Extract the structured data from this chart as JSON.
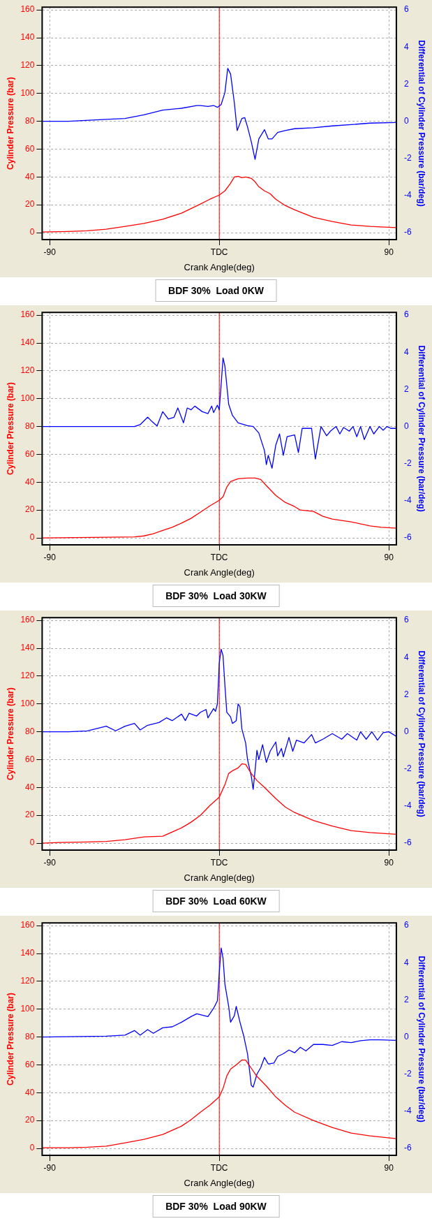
{
  "chart_data": [
    {
      "type": "line",
      "title": "BDF 30%  Load 0KW",
      "xlabel": "Crank Angle(deg)",
      "ylabel": "Cylinder Pressure (bar)",
      "y2label": "Differential of Cylinder Pressure (bar/deg)",
      "xlim": [
        -94,
        94
      ],
      "xticks": [
        {
          "value": -90,
          "label": "-90"
        },
        {
          "value": 0,
          "label": "TDC"
        },
        {
          "value": 90,
          "label": "90"
        }
      ],
      "ylim": [
        -5,
        162
      ],
      "yticks": [
        0,
        20,
        40,
        60,
        80,
        100,
        120,
        140,
        160
      ],
      "y2lim": [
        -6.375,
        6.15
      ],
      "y2ticks": [
        -6,
        -4,
        -2,
        0,
        2,
        4,
        6
      ],
      "grid": true,
      "legend": false,
      "marker": "none",
      "line_style": "solid",
      "ref_lines": [
        {
          "axis": "x",
          "value": 0,
          "color": "#ff0000"
        }
      ],
      "series": [
        {
          "color": "#ff0000",
          "x": [
            -94,
            -80,
            -70,
            -60,
            -50,
            -40,
            -30,
            -20,
            -10,
            -5,
            0,
            3,
            6,
            8,
            10,
            12,
            14,
            17,
            19,
            21,
            24,
            27,
            30,
            35,
            40,
            50,
            60,
            70,
            80,
            94
          ],
          "values": [
            0.5,
            0.8,
            1.3,
            2.5,
            4.5,
            6.6,
            9.6,
            14,
            20.5,
            24,
            27,
            30,
            35.5,
            40,
            40.5,
            39.5,
            40,
            39,
            36.5,
            33,
            30,
            28,
            24,
            19.5,
            16.4,
            11,
            8,
            5.5,
            4.5,
            3.6
          ]
        },
        {
          "color": "#0000ff",
          "axis": "y2",
          "x": [
            -94,
            -80,
            -60,
            -50,
            -40,
            -30,
            -20,
            -12,
            -10,
            -6,
            -3,
            -1,
            1,
            3,
            4.5,
            6,
            8,
            9.5,
            12,
            13.5,
            15,
            17,
            19,
            21,
            24,
            26,
            28,
            31,
            35,
            40,
            50,
            60,
            70,
            80,
            94
          ],
          "values": [
            0,
            0,
            0.1,
            0.15,
            0.35,
            0.6,
            0.7,
            0.85,
            0.85,
            0.8,
            0.85,
            0.75,
            0.9,
            1.55,
            2.85,
            2.55,
            1.0,
            -0.5,
            0.15,
            0.2,
            -0.3,
            -1.1,
            -2.05,
            -0.95,
            -0.45,
            -0.95,
            -0.95,
            -0.6,
            -0.5,
            -0.4,
            -0.35,
            -0.25,
            -0.18,
            -0.1,
            -0.07
          ]
        }
      ]
    },
    {
      "type": "line",
      "title": "BDF 30%  Load 30KW",
      "xlabel": "Crank Angle(deg)",
      "ylabel": "Cylinder Pressure (bar)",
      "y2label": "Differential of Cylinder Pressure (bar/deg)",
      "xlim": [
        -94,
        94
      ],
      "xticks": [
        {
          "value": -90,
          "label": "-90"
        },
        {
          "value": 0,
          "label": "TDC"
        },
        {
          "value": 90,
          "label": "90"
        }
      ],
      "ylim": [
        -5,
        162
      ],
      "yticks": [
        0,
        20,
        40,
        60,
        80,
        100,
        120,
        140,
        160
      ],
      "y2lim": [
        -6.375,
        6.15
      ],
      "y2ticks": [
        -6,
        -4,
        -2,
        0,
        2,
        4,
        6
      ],
      "grid": true,
      "legend": false,
      "marker": "none",
      "line_style": "solid",
      "ref_lines": [
        {
          "axis": "x",
          "value": 0,
          "color": "#ff0000"
        }
      ],
      "series": [
        {
          "color": "#ff0000",
          "x": [
            -94,
            -60,
            -45,
            -40,
            -35,
            -30,
            -25,
            -20,
            -15,
            -10,
            -5,
            0,
            2,
            4,
            6,
            10,
            15,
            19,
            22,
            25,
            30,
            35,
            40,
            43,
            50,
            55,
            60,
            70,
            80,
            86,
            94
          ],
          "values": [
            0,
            0.5,
            0.7,
            1.4,
            3,
            5.4,
            7.6,
            10.6,
            14,
            18.5,
            23,
            27,
            29.5,
            36.5,
            40.5,
            42.5,
            43,
            43,
            42,
            37.5,
            30.5,
            25.5,
            22.5,
            20,
            19,
            15.5,
            13.5,
            11.5,
            8.6,
            7.6,
            7
          ]
        },
        {
          "color": "#0000ff",
          "axis": "y2",
          "x": [
            -94,
            -45,
            -42,
            -38,
            -36,
            -33,
            -30,
            -27,
            -24,
            -22,
            -19,
            -17,
            -15,
            -13,
            -9,
            -6,
            -4,
            -3,
            -1,
            0,
            1,
            2,
            3,
            5,
            7,
            10,
            15,
            18,
            21,
            24,
            25,
            26,
            28,
            30,
            32,
            34,
            36,
            40,
            42,
            44,
            49,
            51,
            54,
            57,
            59,
            62,
            64,
            66,
            69,
            71,
            73,
            75,
            77,
            80,
            82,
            85,
            87,
            89,
            91,
            94
          ],
          "values": [
            0,
            0,
            0.1,
            0.5,
            0.3,
            0.03,
            0.8,
            0.4,
            0.5,
            1.0,
            0.2,
            1.0,
            0.9,
            1.1,
            0.8,
            0.7,
            1.1,
            0.75,
            1.15,
            0.9,
            2.25,
            3.7,
            3.25,
            1.2,
            0.6,
            0.2,
            0.05,
            0,
            -0.35,
            -1.3,
            -2.05,
            -1.55,
            -2.25,
            -1.0,
            -0.4,
            -1.55,
            -0.55,
            -0.45,
            -1.4,
            -0.1,
            -0.1,
            -1.75,
            0,
            -0.5,
            -0.25,
            0,
            -0.4,
            -0.05,
            -0.25,
            0,
            -0.55,
            0,
            -0.7,
            0,
            -0.4,
            0,
            -0.2,
            0,
            -0.1,
            -0.1
          ]
        }
      ]
    },
    {
      "type": "line",
      "title": "BDF 30%  Load 60KW",
      "xlabel": "Crank Angle(deg)",
      "ylabel": "Cylinder Pressure (bar)",
      "y2label": "Differential of Cylinder Pressure (bar/deg)",
      "xlim": [
        -94,
        94
      ],
      "xticks": [
        {
          "value": -90,
          "label": "-90"
        },
        {
          "value": 0,
          "label": "TDC"
        },
        {
          "value": 90,
          "label": "90"
        }
      ],
      "ylim": [
        -5,
        162
      ],
      "yticks": [
        0,
        20,
        40,
        60,
        80,
        100,
        120,
        140,
        160
      ],
      "y2lim": [
        -6.375,
        6.15
      ],
      "y2ticks": [
        -6,
        -4,
        -2,
        0,
        2,
        4,
        6
      ],
      "grid": true,
      "legend": false,
      "marker": "none",
      "line_style": "solid",
      "ref_lines": [
        {
          "axis": "x",
          "value": 0,
          "color": "#ff0000"
        }
      ],
      "series": [
        {
          "color": "#ff0000",
          "x": [
            -94,
            -85,
            -70,
            -60,
            -50,
            -40,
            -30,
            -20,
            -15,
            -10,
            -5,
            0,
            3,
            5,
            7,
            10,
            12,
            14,
            17,
            20,
            24,
            30,
            35,
            40,
            50,
            60,
            70,
            80,
            94
          ],
          "values": [
            0,
            0.5,
            0.8,
            1.2,
            2.5,
            4.5,
            5,
            11,
            15,
            20,
            27,
            33,
            42,
            50,
            52,
            54,
            57,
            56.5,
            50,
            45,
            40,
            32,
            26,
            22,
            16.3,
            12.3,
            9,
            7.6,
            6.4
          ]
        },
        {
          "color": "#0000ff",
          "axis": "y2",
          "x": [
            -94,
            -80,
            -70,
            -60,
            -55,
            -50,
            -45,
            -42,
            -38,
            -32,
            -28,
            -25,
            -20,
            -18,
            -16,
            -12,
            -10,
            -7,
            -6,
            -3,
            -2,
            -1,
            0,
            1,
            2,
            3,
            4,
            6,
            7,
            9,
            10,
            11,
            12,
            14,
            15,
            17,
            18,
            19,
            20,
            21,
            23,
            25,
            27,
            30,
            31,
            33,
            34,
            37,
            39,
            41,
            45,
            49,
            51,
            55,
            60,
            65,
            68,
            73,
            75,
            78,
            81,
            84,
            87,
            90,
            94
          ],
          "values": [
            0,
            0,
            0.05,
            0.3,
            0.05,
            0.3,
            0.45,
            0.1,
            0.35,
            0.5,
            0.75,
            0.6,
            0.95,
            0.6,
            1.0,
            0.85,
            1.05,
            1.2,
            0.75,
            1.25,
            1.1,
            1.5,
            3.7,
            4.45,
            4.1,
            2.5,
            1.05,
            0.8,
            0.45,
            0.6,
            1.5,
            1.35,
            0.15,
            -0.6,
            -1.5,
            -2.4,
            -3.1,
            -2.1,
            -1.0,
            -1.5,
            -0.7,
            -1.65,
            -1.05,
            -0.55,
            -1.3,
            -0.9,
            -1.35,
            -0.3,
            -1.05,
            -0.45,
            -0.6,
            -0.15,
            -0.6,
            -0.4,
            -0.1,
            -0.4,
            -0.1,
            -0.45,
            0,
            -0.4,
            0,
            -0.45,
            -0.05,
            0,
            -0.25
          ]
        }
      ]
    },
    {
      "type": "line",
      "title": "BDF 30%  Load 90KW",
      "xlabel": "Crank Angle(deg)",
      "ylabel": "Cylinder Pressure (bar)",
      "y2label": "Differential of Cylinder Pressure (bar/deg)",
      "xlim": [
        -94,
        94
      ],
      "xticks": [
        {
          "value": -90,
          "label": "-90"
        },
        {
          "value": 0,
          "label": "TDC"
        },
        {
          "value": 90,
          "label": "90"
        }
      ],
      "ylim": [
        -5,
        162
      ],
      "yticks": [
        0,
        20,
        40,
        60,
        80,
        100,
        120,
        140,
        160
      ],
      "y2lim": [
        -6.375,
        6.15
      ],
      "y2ticks": [
        -6,
        -4,
        -2,
        0,
        2,
        4,
        6
      ],
      "grid": true,
      "legend": false,
      "marker": "none",
      "line_style": "solid",
      "ref_lines": [
        {
          "axis": "x",
          "value": 0,
          "color": "#ff0000"
        }
      ],
      "series": [
        {
          "color": "#ff0000",
          "x": [
            -94,
            -80,
            -70,
            -60,
            -50,
            -40,
            -30,
            -20,
            -15,
            -10,
            -5,
            0,
            2,
            4,
            6,
            9,
            12,
            14,
            17,
            20,
            25,
            30,
            35,
            40,
            50,
            60,
            70,
            80,
            94
          ],
          "values": [
            0.5,
            0.5,
            0.8,
            1.6,
            4,
            6.5,
            10,
            16,
            20.6,
            26,
            31,
            37,
            43,
            52,
            57,
            60,
            63.5,
            63.4,
            57.6,
            51.7,
            44.8,
            37,
            31,
            26,
            20,
            15,
            11,
            9,
            7
          ]
        },
        {
          "color": "#0000ff",
          "axis": "y2",
          "x": [
            -94,
            -80,
            -60,
            -50,
            -45,
            -42,
            -38,
            -35,
            -30,
            -25,
            -20,
            -15,
            -12,
            -10,
            -6,
            -3,
            -1,
            0,
            1,
            2,
            3,
            5,
            6,
            8,
            9,
            11,
            13,
            15,
            17,
            18,
            20,
            22,
            24,
            26,
            29,
            31,
            34,
            37,
            40,
            43,
            46,
            50,
            55,
            60,
            65,
            70,
            75,
            80,
            85,
            94
          ],
          "values": [
            0,
            0.02,
            0.05,
            0.1,
            0.35,
            0.1,
            0.4,
            0.2,
            0.5,
            0.55,
            0.8,
            1.1,
            1.25,
            1.2,
            1.1,
            1.55,
            1.95,
            3.45,
            4.8,
            4.25,
            2.85,
            1.65,
            0.8,
            1.15,
            1.65,
            0.8,
            0.05,
            -0.9,
            -2.6,
            -2.7,
            -2.0,
            -1.65,
            -1.1,
            -1.45,
            -1.4,
            -1.05,
            -0.9,
            -0.7,
            -0.85,
            -0.55,
            -0.75,
            -0.4,
            -0.4,
            -0.45,
            -0.25,
            -0.3,
            -0.2,
            -0.15,
            -0.15,
            -0.18
          ]
        }
      ]
    }
  ]
}
